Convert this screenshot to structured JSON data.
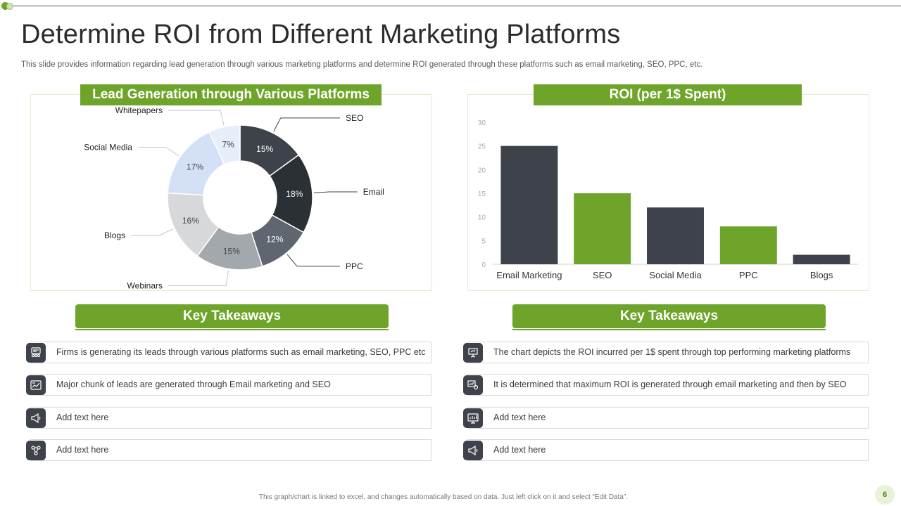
{
  "slide": {
    "title": "Determine ROI from Different Marketing Platforms",
    "subtitle": "This slide provides information regarding lead generation through various marketing platforms and determine ROI generated through these platforms such as email marketing, SEO, PPC, etc.",
    "footer_note": "This graph/chart is linked to excel, and changes automatically based on data. Just left click on it and select “Edit Data”.",
    "page_number": "6",
    "accent_color": "#6fa42a",
    "dark_color": "#3d424b"
  },
  "left_panel": {
    "header": "Lead Generation through  Various  Platforms"
  },
  "right_panel": {
    "header": "ROI (per 1$ Spent)"
  },
  "chart_data": [
    {
      "type": "pie",
      "variant": "donut",
      "title": "Lead Generation through  Various  Platforms",
      "slices": [
        {
          "label": "SEO",
          "value": 15,
          "display": "15%",
          "color": "#3d424b"
        },
        {
          "label": "Email",
          "value": 18,
          "display": "18%",
          "color": "#2b3035"
        },
        {
          "label": "PPC",
          "value": 12,
          "display": "12%",
          "color": "#5f6670"
        },
        {
          "label": "Webinars",
          "value": 15,
          "display": "15%",
          "color": "#a3a8ad"
        },
        {
          "label": "Blogs",
          "value": 16,
          "display": "16%",
          "color": "#d6d8da"
        },
        {
          "label": "Social Media",
          "value": 17,
          "display": "17%",
          "color": "#d3e0f5"
        },
        {
          "label": "Whitepapers",
          "value": 7,
          "display": "7%",
          "color": "#e6eefb"
        }
      ]
    },
    {
      "type": "bar",
      "title": "ROI (per 1$ Spent)",
      "categories": [
        "Email Marketing",
        "SEO",
        "Social Media",
        "PPC",
        "Blogs"
      ],
      "values": [
        25,
        15,
        12,
        8,
        2
      ],
      "colors": [
        "#3d424b",
        "#6fa42a",
        "#3d424b",
        "#6fa42a",
        "#3d424b"
      ],
      "ylim": [
        0,
        30
      ],
      "yticks": [
        "0",
        "5",
        "10",
        "15",
        "20",
        "25",
        "30"
      ],
      "grid": false,
      "xlabel": "",
      "ylabel": ""
    }
  ],
  "left_takeaways": {
    "header": "Key Takeaways",
    "items": [
      {
        "icon": "team-board-icon",
        "text": "Firms is generating its leads through various platforms such as email marketing, SEO, PPC etc"
      },
      {
        "icon": "report-chart-icon",
        "text": "Major chunk of leads are generated through Email marketing and SEO"
      },
      {
        "icon": "megaphone-icon",
        "text": "Add text here"
      },
      {
        "icon": "people-network-icon",
        "text": "Add text here"
      }
    ]
  },
  "right_takeaways": {
    "header": "Key Takeaways",
    "items": [
      {
        "icon": "presentation-icon",
        "text": "The chart depicts the ROI incurred per 1$ spent through top performing marketing platforms"
      },
      {
        "icon": "analytics-gear-icon",
        "text": "It is determined that maximum ROI is generated through email marketing and then by SEO"
      },
      {
        "icon": "monitor-chart-icon",
        "text": "Add text here"
      },
      {
        "icon": "megaphone-icon",
        "text": "Add text here"
      }
    ]
  }
}
